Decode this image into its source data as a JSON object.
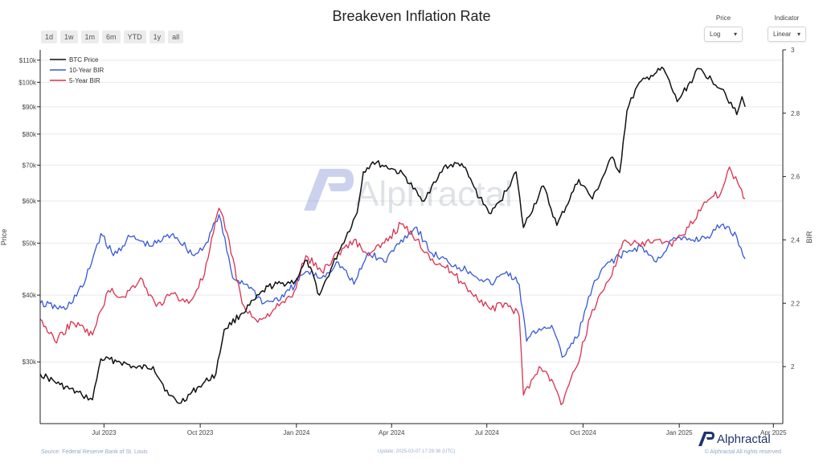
{
  "title": "Breakeven Inflation Rate",
  "range_buttons": [
    "1d",
    "1w",
    "1m",
    "6m",
    "YTD",
    "1y",
    "all"
  ],
  "controls": {
    "price": {
      "label": "Price",
      "value": "Log"
    },
    "indicator": {
      "label": "Indicator",
      "value": "Linear"
    }
  },
  "watermark": "Alphractal",
  "footer": {
    "source": "Source: Federal Reserve Bank of St. Louis",
    "update": "Update: 2025-03-07 17:28:36 (UTC)",
    "rights": "© Alphractal All rights reserved",
    "logo_text": "Alphractal"
  },
  "colors": {
    "btc": "#111111",
    "bir10": "#3558d6",
    "bir5": "#d9304f",
    "grid": "#e9e9e9",
    "logo": "#1e3570"
  },
  "chart_data": {
    "type": "line",
    "title": "Breakeven Inflation Rate",
    "xlabel": "",
    "ylabel_left": "Price",
    "ylabel_right": "BIR",
    "y_left_scale": "log",
    "y_left_lim": [
      23000,
      115000
    ],
    "y_right_lim": [
      1.82,
      3.0
    ],
    "x_range": [
      "2023-05-01",
      "2025-04-10"
    ],
    "x_ticks": [
      {
        "label": "Jul 2023",
        "date": "2023-07-01"
      },
      {
        "label": "Oct 2023",
        "date": "2023-10-01"
      },
      {
        "label": "Jan 2024",
        "date": "2024-01-01"
      },
      {
        "label": "Apr 2024",
        "date": "2024-04-01"
      },
      {
        "label": "Jul 2024",
        "date": "2024-07-01"
      },
      {
        "label": "Oct 2024",
        "date": "2024-10-01"
      },
      {
        "label": "Jan 2025",
        "date": "2025-01-01"
      },
      {
        "label": "Apr 2025",
        "date": "2025-04-01"
      }
    ],
    "y_left_ticks": [
      {
        "label": "$30k",
        "value": 30000
      },
      {
        "label": "$40k",
        "value": 40000
      },
      {
        "label": "$50k",
        "value": 50000
      },
      {
        "label": "$60k",
        "value": 60000
      },
      {
        "label": "$70k",
        "value": 70000
      },
      {
        "label": "$80k",
        "value": 80000
      },
      {
        "label": "$90k",
        "value": 90000
      },
      {
        "label": "$100k",
        "value": 100000
      },
      {
        "label": "$110k",
        "value": 110000
      }
    ],
    "y_right_ticks": [
      {
        "label": "2",
        "value": 2.0
      },
      {
        "label": "2.2",
        "value": 2.2
      },
      {
        "label": "2.4",
        "value": 2.4
      },
      {
        "label": "2.6",
        "value": 2.6
      },
      {
        "label": "2.8",
        "value": 2.8
      },
      {
        "label": "3",
        "value": 3.0
      }
    ],
    "legend": "top-left",
    "series": [
      {
        "name": "BTC Price",
        "axis": "left",
        "color": "#111111",
        "dates": [
          "2023-05-01",
          "2023-05-20",
          "2023-06-10",
          "2023-06-20",
          "2023-06-28",
          "2023-07-15",
          "2023-08-01",
          "2023-08-17",
          "2023-09-01",
          "2023-09-11",
          "2023-09-30",
          "2023-10-16",
          "2023-10-24",
          "2023-11-10",
          "2023-12-05",
          "2023-12-31",
          "2024-01-11",
          "2024-01-23",
          "2024-02-10",
          "2024-02-28",
          "2024-03-05",
          "2024-03-14",
          "2024-04-01",
          "2024-04-13",
          "2024-04-30",
          "2024-05-15",
          "2024-05-21",
          "2024-06-07",
          "2024-06-24",
          "2024-07-05",
          "2024-07-14",
          "2024-07-29",
          "2024-08-05",
          "2024-08-24",
          "2024-09-06",
          "2024-09-27",
          "2024-10-10",
          "2024-10-29",
          "2024-11-05",
          "2024-11-12",
          "2024-11-22",
          "2024-12-05",
          "2024-12-17",
          "2024-12-30",
          "2025-01-20",
          "2025-02-01",
          "2025-02-12",
          "2025-02-25",
          "2025-03-02",
          "2025-03-05"
        ],
        "values": [
          28500,
          27200,
          26000,
          25500,
          30400,
          30100,
          29200,
          29400,
          26000,
          25100,
          27000,
          28500,
          34500,
          37000,
          41500,
          42500,
          46500,
          40000,
          48000,
          57000,
          68000,
          71000,
          69000,
          67000,
          60000,
          66000,
          69500,
          70500,
          60800,
          56800,
          60000,
          68000,
          53500,
          64000,
          54000,
          65800,
          60500,
          72500,
          67800,
          88500,
          98500,
          103000,
          106000,
          92000,
          106000,
          101000,
          97000,
          87000,
          94000,
          90000
        ]
      },
      {
        "name": "10-Year BIR",
        "axis": "right",
        "color": "#3558d6",
        "dates": [
          "2023-05-01",
          "2023-05-25",
          "2023-06-12",
          "2023-06-28",
          "2023-07-10",
          "2023-07-26",
          "2023-08-15",
          "2023-09-05",
          "2023-09-25",
          "2023-10-05",
          "2023-10-19",
          "2023-11-01",
          "2023-11-15",
          "2023-12-01",
          "2023-12-20",
          "2024-01-10",
          "2024-01-25",
          "2024-02-10",
          "2024-02-25",
          "2024-03-10",
          "2024-03-25",
          "2024-04-10",
          "2024-04-25",
          "2024-05-08",
          "2024-05-25",
          "2024-06-15",
          "2024-07-05",
          "2024-07-20",
          "2024-08-01",
          "2024-08-08",
          "2024-08-20",
          "2024-09-01",
          "2024-09-11",
          "2024-09-25",
          "2024-10-10",
          "2024-10-25",
          "2024-11-12",
          "2024-11-25",
          "2024-12-10",
          "2024-12-25",
          "2025-01-14",
          "2025-01-28",
          "2025-02-12",
          "2025-02-25",
          "2025-03-05"
        ],
        "values": [
          2.2,
          2.18,
          2.26,
          2.42,
          2.35,
          2.41,
          2.38,
          2.42,
          2.35,
          2.38,
          2.48,
          2.28,
          2.26,
          2.2,
          2.22,
          2.3,
          2.28,
          2.33,
          2.26,
          2.36,
          2.33,
          2.4,
          2.44,
          2.36,
          2.33,
          2.3,
          2.26,
          2.3,
          2.26,
          2.08,
          2.12,
          2.13,
          2.03,
          2.09,
          2.25,
          2.33,
          2.36,
          2.38,
          2.33,
          2.4,
          2.4,
          2.41,
          2.45,
          2.41,
          2.34
        ]
      },
      {
        "name": "5-Year BIR",
        "axis": "right",
        "color": "#d9304f",
        "dates": [
          "2023-05-01",
          "2023-05-15",
          "2023-06-01",
          "2023-06-20",
          "2023-07-05",
          "2023-07-20",
          "2023-08-05",
          "2023-08-20",
          "2023-09-05",
          "2023-09-20",
          "2023-10-05",
          "2023-10-19",
          "2023-10-27",
          "2023-11-10",
          "2023-11-25",
          "2023-12-10",
          "2023-12-28",
          "2024-01-10",
          "2024-01-25",
          "2024-02-10",
          "2024-02-25",
          "2024-03-10",
          "2024-03-25",
          "2024-04-10",
          "2024-04-25",
          "2024-05-10",
          "2024-05-28",
          "2024-06-15",
          "2024-07-05",
          "2024-07-20",
          "2024-08-01",
          "2024-08-05",
          "2024-08-20",
          "2024-09-01",
          "2024-09-10",
          "2024-09-25",
          "2024-10-10",
          "2024-10-25",
          "2024-11-10",
          "2024-11-25",
          "2024-12-10",
          "2024-12-25",
          "2025-01-10",
          "2025-01-25",
          "2025-02-10",
          "2025-02-18",
          "2025-02-26",
          "2025-03-05"
        ],
        "values": [
          2.15,
          2.08,
          2.14,
          2.1,
          2.24,
          2.22,
          2.28,
          2.19,
          2.23,
          2.2,
          2.29,
          2.5,
          2.42,
          2.2,
          2.14,
          2.18,
          2.22,
          2.35,
          2.3,
          2.36,
          2.4,
          2.35,
          2.39,
          2.45,
          2.4,
          2.34,
          2.3,
          2.24,
          2.18,
          2.2,
          2.16,
          1.91,
          2.0,
          1.96,
          1.88,
          2.0,
          2.18,
          2.27,
          2.4,
          2.38,
          2.4,
          2.38,
          2.44,
          2.52,
          2.55,
          2.63,
          2.58,
          2.53
        ]
      }
    ]
  }
}
